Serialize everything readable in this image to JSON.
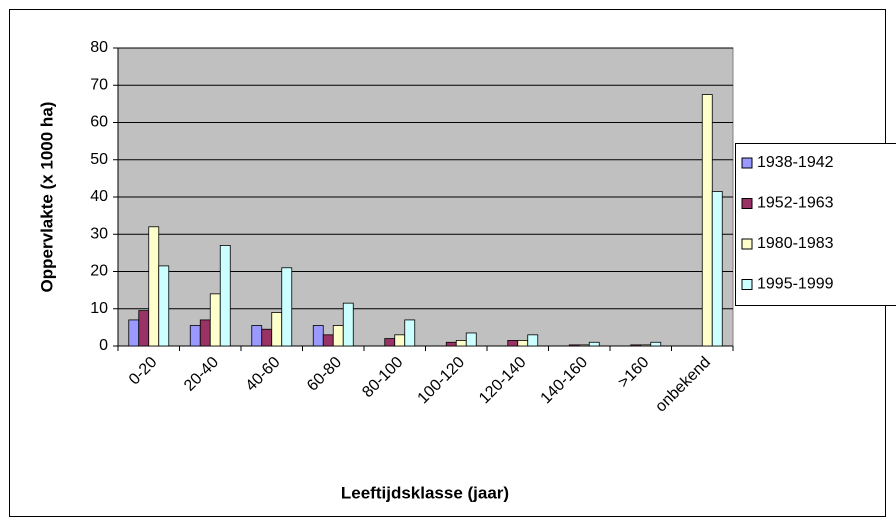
{
  "chart_data": {
    "type": "bar",
    "x_label": "Leeftijdsklasse (jaar)",
    "y_label": "Oppervlakte (x 1000 ha)",
    "categories": [
      "0-20",
      "20-40",
      "40-60",
      "60-80",
      "80-100",
      "100-120",
      "120-140",
      "140-160",
      ">160",
      "onbekend"
    ],
    "series": [
      {
        "name": "1938-1942",
        "color": "#9999ff",
        "values": [
          7,
          5.5,
          5.5,
          5.5,
          0,
          0,
          0,
          0,
          0,
          0
        ]
      },
      {
        "name": "1952-1963",
        "color": "#993366",
        "values": [
          9.5,
          7,
          4.5,
          3,
          2,
          1,
          1.5,
          0.3,
          0.3,
          0
        ]
      },
      {
        "name": "1980-1983",
        "color": "#ffffcc",
        "values": [
          32,
          14,
          9,
          5.5,
          3,
          1.5,
          1.5,
          0.3,
          0.3,
          67.5
        ]
      },
      {
        "name": "1995-1999",
        "color": "#ccffff",
        "values": [
          21.5,
          27,
          21,
          11.5,
          7,
          3.5,
          3,
          1,
          1,
          41.5
        ]
      }
    ],
    "ylim": [
      0,
      80
    ],
    "yticks": [
      0,
      10,
      20,
      30,
      40,
      50,
      60,
      70,
      80
    ],
    "grid": true,
    "plot_background": "#c0c0c0",
    "legend": "right"
  }
}
